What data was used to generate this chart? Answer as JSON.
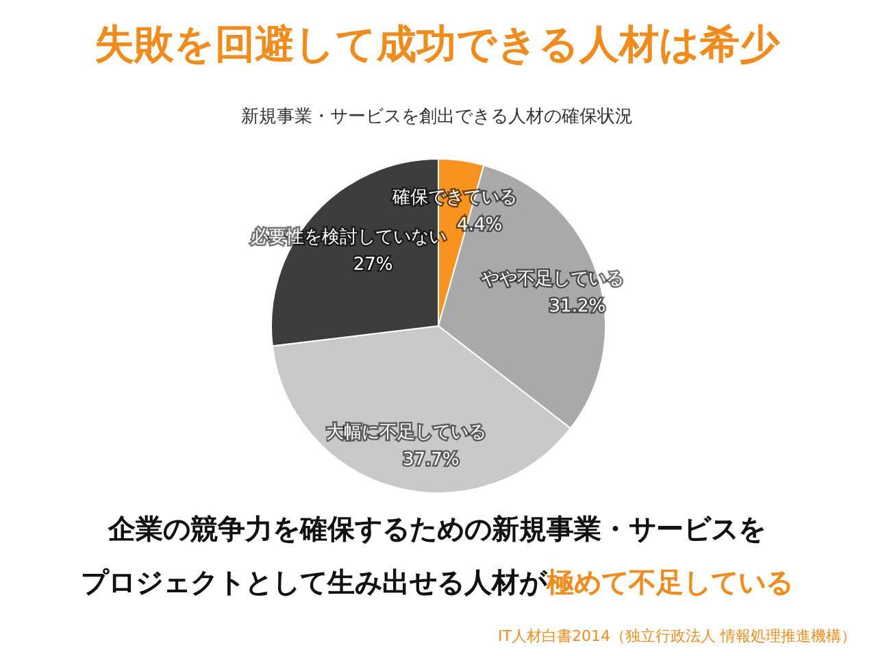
{
  "chart_data": {
    "type": "pie",
    "title": "失敗を回避して成功できる人材は希少",
    "subtitle": "新規事業・サービスを創出できる人材の確保状況",
    "categories": [
      "確保できている",
      "やや不足している",
      "大幅に不足している",
      "必要性を検討していない"
    ],
    "values": [
      4.4,
      31.2,
      37.7,
      27
    ],
    "value_labels": [
      "4.4%",
      "31.2%",
      "37.7%",
      "27%"
    ],
    "colors": [
      "#f7931e",
      "#a9a9a9",
      "#c9c9c9",
      "#3d3d3d"
    ],
    "annotations": [
      "企業の競争力を確保するための新規事業・サービスを",
      "プロジェクトとして生み出せる人材が",
      "極めて不足している",
      "IT人材白書2014（独立行政法人 情報処理推進機構）"
    ]
  }
}
